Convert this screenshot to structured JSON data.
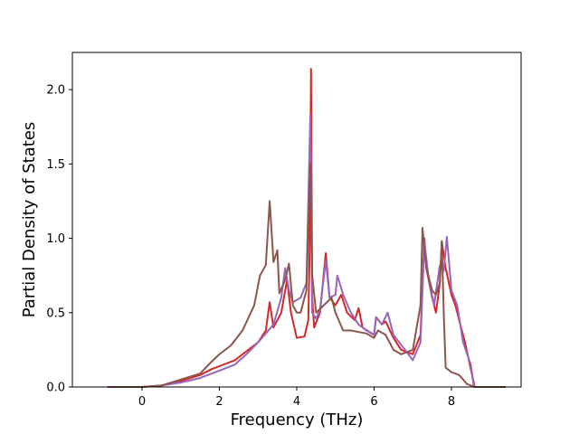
{
  "chart_data": {
    "type": "line",
    "title": "",
    "xlabel": "Frequency (THz)",
    "ylabel": "Partial Density of States",
    "xlim": [
      -1.8,
      9.8
    ],
    "ylim": [
      0.0,
      2.25
    ],
    "xticks": [
      0,
      2,
      4,
      6,
      8
    ],
    "xtick_labels": [
      "0",
      "2",
      "4",
      "6",
      "8"
    ],
    "yticks": [
      0.0,
      0.5,
      1.0,
      1.5,
      2.0
    ],
    "ytick_labels": [
      "0.0",
      "0.5",
      "1.0",
      "1.5",
      "2.0"
    ],
    "grid": false,
    "legend": "none",
    "series": [
      {
        "color": "#d62728",
        "points": [
          [
            -0.9,
            0
          ],
          [
            0,
            0
          ],
          [
            0.5,
            0.01
          ],
          [
            1,
            0.04
          ],
          [
            1.5,
            0.08
          ],
          [
            1.8,
            0.12
          ],
          [
            2,
            0.14
          ],
          [
            2.4,
            0.18
          ],
          [
            2.7,
            0.24
          ],
          [
            3,
            0.3
          ],
          [
            3.2,
            0.38
          ],
          [
            3.3,
            0.57
          ],
          [
            3.4,
            0.4
          ],
          [
            3.6,
            0.5
          ],
          [
            3.75,
            0.72
          ],
          [
            3.85,
            0.5
          ],
          [
            4,
            0.33
          ],
          [
            4.2,
            0.34
          ],
          [
            4.3,
            0.45
          ],
          [
            4.34,
            1.0
          ],
          [
            4.37,
            2.14
          ],
          [
            4.4,
            0.6
          ],
          [
            4.45,
            0.4
          ],
          [
            4.6,
            0.5
          ],
          [
            4.75,
            0.9
          ],
          [
            4.85,
            0.6
          ],
          [
            5,
            0.55
          ],
          [
            5.15,
            0.62
          ],
          [
            5.3,
            0.5
          ],
          [
            5.5,
            0.45
          ],
          [
            5.6,
            0.53
          ],
          [
            5.7,
            0.4
          ],
          [
            6,
            0.35
          ],
          [
            6.05,
            0.47
          ],
          [
            6.2,
            0.42
          ],
          [
            6.3,
            0.44
          ],
          [
            6.5,
            0.33
          ],
          [
            6.7,
            0.25
          ],
          [
            7,
            0.22
          ],
          [
            7.2,
            0.35
          ],
          [
            7.3,
            1.0
          ],
          [
            7.35,
            0.8
          ],
          [
            7.5,
            0.6
          ],
          [
            7.6,
            0.5
          ],
          [
            7.7,
            0.7
          ],
          [
            7.75,
            0.98
          ],
          [
            7.85,
            0.8
          ],
          [
            8,
            0.62
          ],
          [
            8.1,
            0.55
          ],
          [
            8.25,
            0.4
          ],
          [
            8.35,
            0.3
          ],
          [
            8.5,
            0.12
          ],
          [
            8.6,
            0
          ],
          [
            9.4,
            0
          ]
        ]
      },
      {
        "color": "#9467bd",
        "points": [
          [
            -0.9,
            0
          ],
          [
            0,
            0
          ],
          [
            0.5,
            0.01
          ],
          [
            1,
            0.03
          ],
          [
            1.5,
            0.06
          ],
          [
            2,
            0.11
          ],
          [
            2.4,
            0.15
          ],
          [
            2.7,
            0.22
          ],
          [
            3,
            0.3
          ],
          [
            3.2,
            0.36
          ],
          [
            3.4,
            0.42
          ],
          [
            3.6,
            0.6
          ],
          [
            3.7,
            0.8
          ],
          [
            3.8,
            0.65
          ],
          [
            3.9,
            0.57
          ],
          [
            4.1,
            0.6
          ],
          [
            4.25,
            0.7
          ],
          [
            4.35,
            1.83
          ],
          [
            4.4,
            0.5
          ],
          [
            4.5,
            0.46
          ],
          [
            4.6,
            0.52
          ],
          [
            4.75,
            0.85
          ],
          [
            4.85,
            0.6
          ],
          [
            5,
            0.62
          ],
          [
            5.05,
            0.75
          ],
          [
            5.2,
            0.62
          ],
          [
            5.4,
            0.5
          ],
          [
            5.6,
            0.42
          ],
          [
            5.8,
            0.38
          ],
          [
            6,
            0.35
          ],
          [
            6.05,
            0.47
          ],
          [
            6.2,
            0.42
          ],
          [
            6.35,
            0.5
          ],
          [
            6.5,
            0.35
          ],
          [
            6.8,
            0.25
          ],
          [
            7,
            0.18
          ],
          [
            7.2,
            0.3
          ],
          [
            7.3,
            0.98
          ],
          [
            7.4,
            0.75
          ],
          [
            7.55,
            0.55
          ],
          [
            7.7,
            0.82
          ],
          [
            7.8,
            0.78
          ],
          [
            7.88,
            1.01
          ],
          [
            8,
            0.65
          ],
          [
            8.15,
            0.55
          ],
          [
            8.3,
            0.3
          ],
          [
            8.5,
            0.15
          ],
          [
            8.58,
            0
          ],
          [
            9.4,
            0
          ]
        ]
      },
      {
        "color": "#8c564b",
        "points": [
          [
            -0.9,
            0
          ],
          [
            0,
            0
          ],
          [
            0.5,
            0.01
          ],
          [
            1,
            0.05
          ],
          [
            1.5,
            0.09
          ],
          [
            1.8,
            0.17
          ],
          [
            2,
            0.22
          ],
          [
            2.3,
            0.28
          ],
          [
            2.6,
            0.38
          ],
          [
            2.9,
            0.55
          ],
          [
            3.05,
            0.75
          ],
          [
            3.2,
            0.82
          ],
          [
            3.3,
            1.25
          ],
          [
            3.4,
            0.84
          ],
          [
            3.5,
            0.92
          ],
          [
            3.55,
            0.63
          ],
          [
            3.7,
            0.72
          ],
          [
            3.8,
            0.83
          ],
          [
            3.9,
            0.55
          ],
          [
            4,
            0.5
          ],
          [
            4.1,
            0.5
          ],
          [
            4.25,
            0.65
          ],
          [
            4.35,
            1.5
          ],
          [
            4.4,
            0.75
          ],
          [
            4.5,
            0.5
          ],
          [
            4.7,
            0.55
          ],
          [
            4.9,
            0.6
          ],
          [
            5,
            0.5
          ],
          [
            5.2,
            0.38
          ],
          [
            5.4,
            0.38
          ],
          [
            5.6,
            0.37
          ],
          [
            5.8,
            0.36
          ],
          [
            6,
            0.33
          ],
          [
            6.1,
            0.38
          ],
          [
            6.3,
            0.35
          ],
          [
            6.5,
            0.25
          ],
          [
            6.7,
            0.22
          ],
          [
            7,
            0.25
          ],
          [
            7.2,
            0.55
          ],
          [
            7.25,
            1.07
          ],
          [
            7.35,
            0.8
          ],
          [
            7.5,
            0.65
          ],
          [
            7.6,
            0.62
          ],
          [
            7.7,
            0.7
          ],
          [
            7.75,
            0.98
          ],
          [
            7.8,
            0.5
          ],
          [
            7.85,
            0.13
          ],
          [
            8,
            0.1
          ],
          [
            8.2,
            0.08
          ],
          [
            8.4,
            0.02
          ],
          [
            8.6,
            0
          ],
          [
            9.4,
            0
          ]
        ]
      }
    ]
  }
}
